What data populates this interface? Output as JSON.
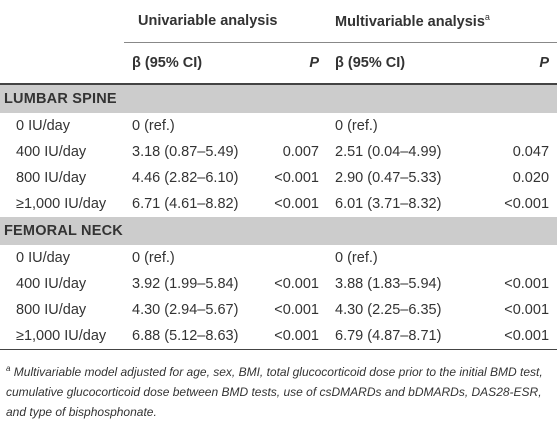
{
  "header": {
    "univariable": "Univariable analysis",
    "multivariable": "Multivariable analysis",
    "multivariable_marker": "a",
    "ci_label": "β (95% CI)",
    "p_label": "P"
  },
  "sections": [
    {
      "title": "LUMBAR SPINE",
      "rows": [
        {
          "label": "0 IU/day",
          "uni_ci": "0 (ref.)",
          "uni_p": "",
          "multi_ci": "0 (ref.)",
          "multi_p": ""
        },
        {
          "label": "400 IU/day",
          "uni_ci": "3.18 (0.87–5.49)",
          "uni_p": "0.007",
          "multi_ci": "2.51 (0.04–4.99)",
          "multi_p": "0.047"
        },
        {
          "label": "800 IU/day",
          "uni_ci": "4.46 (2.82–6.10)",
          "uni_p": "<0.001",
          "multi_ci": "2.90 (0.47–5.33)",
          "multi_p": "0.020"
        },
        {
          "label": "≥1,000 IU/day",
          "uni_ci": "6.71 (4.61–8.82)",
          "uni_p": "<0.001",
          "multi_ci": "6.01 (3.71–8.32)",
          "multi_p": "<0.001"
        }
      ]
    },
    {
      "title": "FEMORAL NECK",
      "rows": [
        {
          "label": "0 IU/day",
          "uni_ci": "0 (ref.)",
          "uni_p": "",
          "multi_ci": "0 (ref.)",
          "multi_p": ""
        },
        {
          "label": "400 IU/day",
          "uni_ci": "3.92 (1.99–5.84)",
          "uni_p": "<0.001",
          "multi_ci": "3.88 (1.83–5.94)",
          "multi_p": "<0.001"
        },
        {
          "label": "800 IU/day",
          "uni_ci": "4.30 (2.94–5.67)",
          "uni_p": "<0.001",
          "multi_ci": "4.30 (2.25–6.35)",
          "multi_p": "<0.001"
        },
        {
          "label": "≥1,000 IU/day",
          "uni_ci": "6.88 (5.12–8.63)",
          "uni_p": "<0.001",
          "multi_ci": "6.79 (4.87–8.71)",
          "multi_p": "<0.001"
        }
      ]
    }
  ],
  "footnote": {
    "marker": "a",
    "text": "Multivariable model adjusted for age, sex, BMI, total glucocorticoid dose prior to the initial BMD test, cumulative glucocorticoid dose between BMD tests, use of csDMARDs and bDMARDs, DAS28-ESR, and type of bisphosphonate."
  }
}
